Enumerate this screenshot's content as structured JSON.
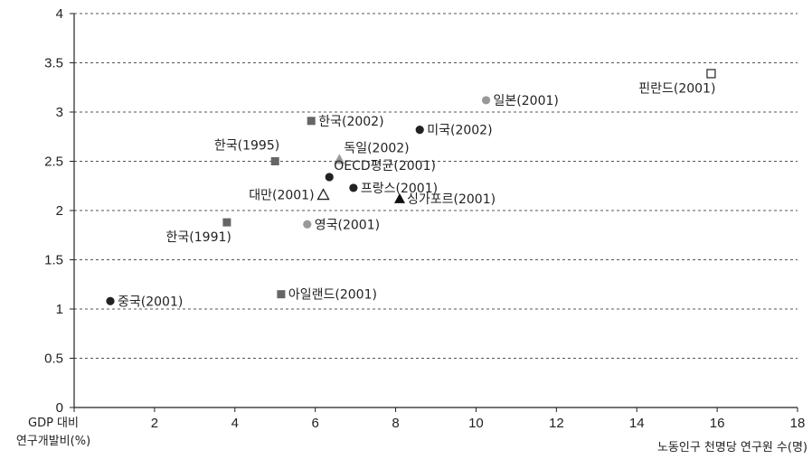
{
  "chart_data": {
    "type": "scatter",
    "xlabel": "노동인구 천명당 연구원 수(명)",
    "ylabel_lines": [
      "GDP 대비",
      "연구개발비(%)"
    ],
    "xlim": [
      0,
      18
    ],
    "ylim": [
      0,
      4
    ],
    "xticks": [
      "0",
      "2",
      "4",
      "6",
      "8",
      "10",
      "12",
      "14",
      "16",
      "18"
    ],
    "yticks": [
      "0",
      "0.5",
      "1",
      "1.5",
      "2",
      "2.5",
      "3",
      "3.5",
      "4"
    ],
    "grid": "horizontal dashed",
    "points": [
      {
        "label": "한국(1991)",
        "x": 3.8,
        "y": 1.88,
        "marker": "square",
        "color": "#666666",
        "label_pos": "below-left"
      },
      {
        "label": "한국(1995)",
        "x": 5.0,
        "y": 2.5,
        "marker": "square",
        "color": "#666666",
        "label_pos": "above-left"
      },
      {
        "label": "한국(2002)",
        "x": 5.9,
        "y": 2.91,
        "marker": "square",
        "color": "#666666",
        "label_pos": "right"
      },
      {
        "label": "아일랜드(2001)",
        "x": 5.15,
        "y": 1.15,
        "marker": "square",
        "color": "#666666",
        "label_pos": "right"
      },
      {
        "label": "중국(2001)",
        "x": 0.9,
        "y": 1.08,
        "marker": "circle",
        "color": "#222222",
        "label_pos": "right"
      },
      {
        "label": "영국(2001)",
        "x": 5.8,
        "y": 1.86,
        "marker": "circle",
        "color": "#999999",
        "label_pos": "right"
      },
      {
        "label": "독일(2002)",
        "x": 6.6,
        "y": 2.52,
        "marker": "triangle",
        "color": "#999999",
        "label_pos": "above-right"
      },
      {
        "label": "OECD평균(2001)",
        "x": 6.35,
        "y": 2.34,
        "marker": "circle",
        "color": "#222222",
        "label_pos": "above-right"
      },
      {
        "label": "대만(2001)",
        "x": 6.2,
        "y": 2.16,
        "marker": "triangle-open",
        "color": "#222222",
        "label_pos": "left"
      },
      {
        "label": "프랑스(2001)",
        "x": 6.95,
        "y": 2.23,
        "marker": "circle",
        "color": "#222222",
        "label_pos": "right"
      },
      {
        "label": "싱가포르(2001)",
        "x": 8.1,
        "y": 2.12,
        "marker": "triangle",
        "color": "#111111",
        "label_pos": "right"
      },
      {
        "label": "미국(2002)",
        "x": 8.6,
        "y": 2.82,
        "marker": "circle",
        "color": "#222222",
        "label_pos": "right"
      },
      {
        "label": "일본(2001)",
        "x": 10.25,
        "y": 3.12,
        "marker": "circle",
        "color": "#999999",
        "label_pos": "right"
      },
      {
        "label": "핀란드(2001)",
        "x": 15.85,
        "y": 3.39,
        "marker": "square-open",
        "color": "#222222",
        "label_pos": "below-left"
      }
    ]
  }
}
